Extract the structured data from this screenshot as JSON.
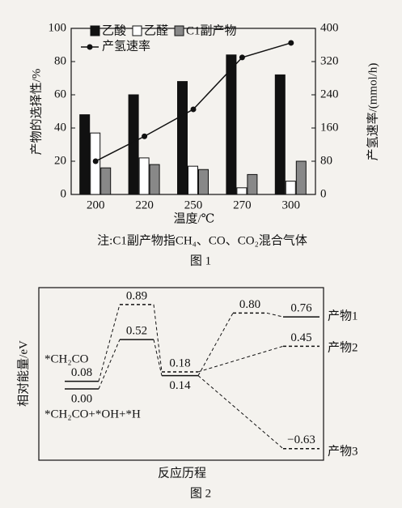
{
  "chart_data": [
    {
      "type": "bar",
      "xlabel": "温度/℃",
      "ylabel": "产物的选择性/%",
      "y2label": "产氢速率/(mmol/h)",
      "categories": [
        "200",
        "220",
        "250",
        "270",
        "300"
      ],
      "series": [
        {
          "name": "乙酸",
          "color": "#111111",
          "values": [
            48,
            60,
            68,
            84,
            72
          ]
        },
        {
          "name": "乙醛",
          "color": "#ffffff",
          "values": [
            37,
            22,
            17,
            4,
            8
          ]
        },
        {
          "name": "C1副产物",
          "color": "#888888",
          "values": [
            16,
            18,
            15,
            12,
            20
          ]
        },
        {
          "name": "产氢速率",
          "color": "#111111",
          "type": "line",
          "axis": "y2",
          "values": [
            80,
            140,
            205,
            330,
            365
          ]
        }
      ],
      "ylim": [
        0,
        100
      ],
      "yticks": [
        0,
        20,
        40,
        60,
        80,
        100
      ],
      "y2lim": [
        0,
        400
      ],
      "y2ticks": [
        0,
        80,
        160,
        240,
        320,
        400
      ],
      "note": "注:C1副产物指CH₄、CO、CO₂混合气体",
      "caption": "图 1"
    },
    {
      "type": "energy-diagram",
      "ylabel": "相对能量/eV",
      "xlabel": "反应历程",
      "caption": "图 2",
      "levels": [
        {
          "value": 0.08,
          "label": "0.08"
        },
        {
          "value": 0,
          "label": "0.00"
        },
        {
          "value": 0.89,
          "label": "0.89"
        },
        {
          "value": 0.52,
          "label": "0.52"
        },
        {
          "value": 0.18,
          "label": "0.18"
        },
        {
          "value": 0.14,
          "label": "0.14"
        },
        {
          "value": 0.8,
          "label": "0.80"
        },
        {
          "value": 0.76,
          "label": "0.76"
        },
        {
          "value": 0.45,
          "label": "0.45"
        },
        {
          "value": -0.63,
          "label": "−0.63"
        }
      ],
      "species": [
        "*CH₂CO",
        "*CH₂CO+*OH+*H"
      ],
      "products": [
        "产物1",
        "产物2",
        "产物3"
      ]
    }
  ]
}
